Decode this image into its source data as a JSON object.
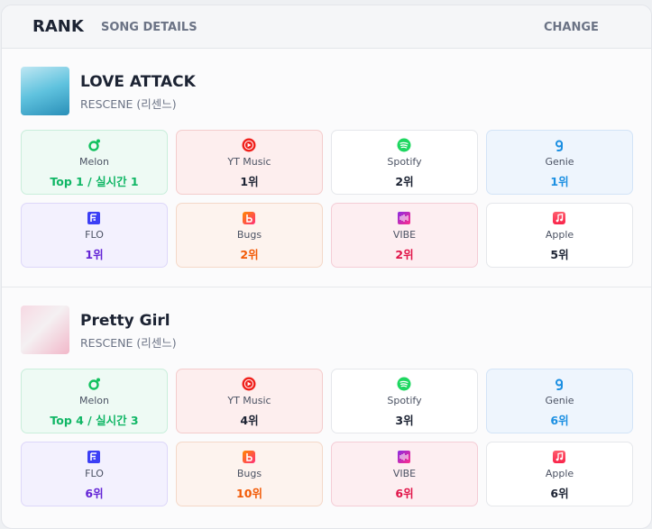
{
  "header": {
    "tabs": [
      "RANK",
      "SONG DETAILS"
    ],
    "action": "CHANGE"
  },
  "songs": [
    {
      "title": "LOVE ATTACK",
      "artist": "RESCENE (리센느)",
      "platforms": [
        {
          "name": "Melon",
          "rank": "Top 1 / 실시간 1"
        },
        {
          "name": "YT Music",
          "rank": "1위"
        },
        {
          "name": "Spotify",
          "rank": "2위"
        },
        {
          "name": "Genie",
          "rank": "1위"
        },
        {
          "name": "FLO",
          "rank": "1위"
        },
        {
          "name": "Bugs",
          "rank": "2위"
        },
        {
          "name": "VIBE",
          "rank": "2위"
        },
        {
          "name": "Apple",
          "rank": "5위"
        }
      ]
    },
    {
      "title": "Pretty Girl",
      "artist": "RESCENE (리센느)",
      "platforms": [
        {
          "name": "Melon",
          "rank": "Top 4 / 실시간 3"
        },
        {
          "name": "YT Music",
          "rank": "4위"
        },
        {
          "name": "Spotify",
          "rank": "3위"
        },
        {
          "name": "Genie",
          "rank": "6위"
        },
        {
          "name": "FLO",
          "rank": "6위"
        },
        {
          "name": "Bugs",
          "rank": "10위"
        },
        {
          "name": "VIBE",
          "rank": "6위"
        },
        {
          "name": "Apple",
          "rank": "6위"
        }
      ]
    }
  ]
}
